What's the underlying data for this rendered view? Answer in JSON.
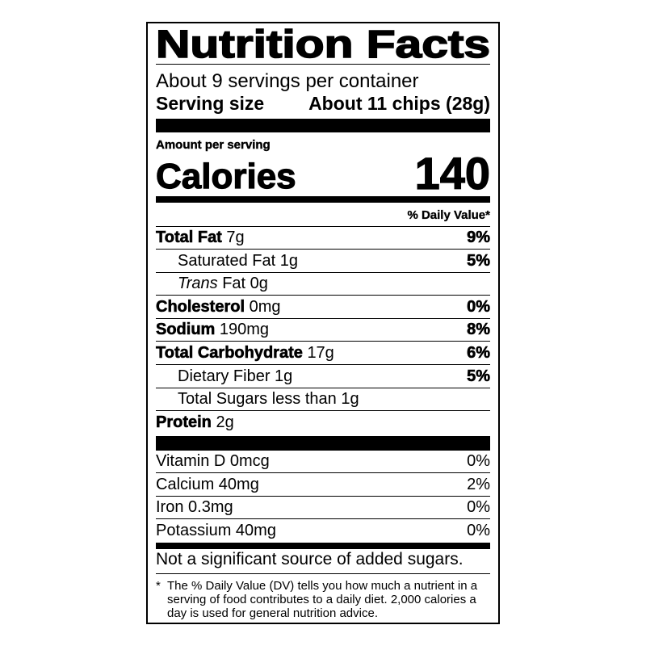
{
  "title": "Nutrition Facts",
  "servings_per_container": "About 9 servings per container",
  "serving_size": {
    "label": "Serving size",
    "value": "About 11 chips (28g)"
  },
  "amount_per_serving": "Amount per serving",
  "calories": {
    "label": "Calories",
    "value": "140"
  },
  "daily_value_header": "% Daily Value*",
  "nutrients": [
    {
      "name": "Total Fat",
      "amount": "7g",
      "dv": "9%"
    },
    {
      "name": "Saturated Fat",
      "amount": "1g",
      "dv": "5%"
    },
    {
      "name_italic": "Trans",
      "name": "Fat",
      "amount": "0g"
    },
    {
      "name": "Cholesterol",
      "amount": "0mg",
      "dv": "0%"
    },
    {
      "name": "Sodium",
      "amount": "190mg",
      "dv": "8%"
    },
    {
      "name": "Total Carbohydrate",
      "amount": "17g",
      "dv": "6%"
    },
    {
      "name": "Dietary Fiber",
      "amount": "1g",
      "dv": "5%"
    },
    {
      "name": "Total Sugars less than",
      "amount": "1g"
    },
    {
      "name": "Protein",
      "amount": "2g"
    }
  ],
  "vitamins": [
    {
      "text": "Vitamin D 0mcg",
      "dv": "0%"
    },
    {
      "text": "Calcium 40mg",
      "dv": "2%"
    },
    {
      "text": "Iron 0.3mg",
      "dv": "0%"
    },
    {
      "text": "Potassium 40mg",
      "dv": "0%"
    }
  ],
  "added_sugars_note": "Not a significant source of added sugars.",
  "footnote": {
    "marker": "*",
    "text": "The % Daily Value (DV) tells you how much a nutrient in a serving of food contributes to a daily diet. 2,000 calories a day is used for general nutrition advice."
  }
}
